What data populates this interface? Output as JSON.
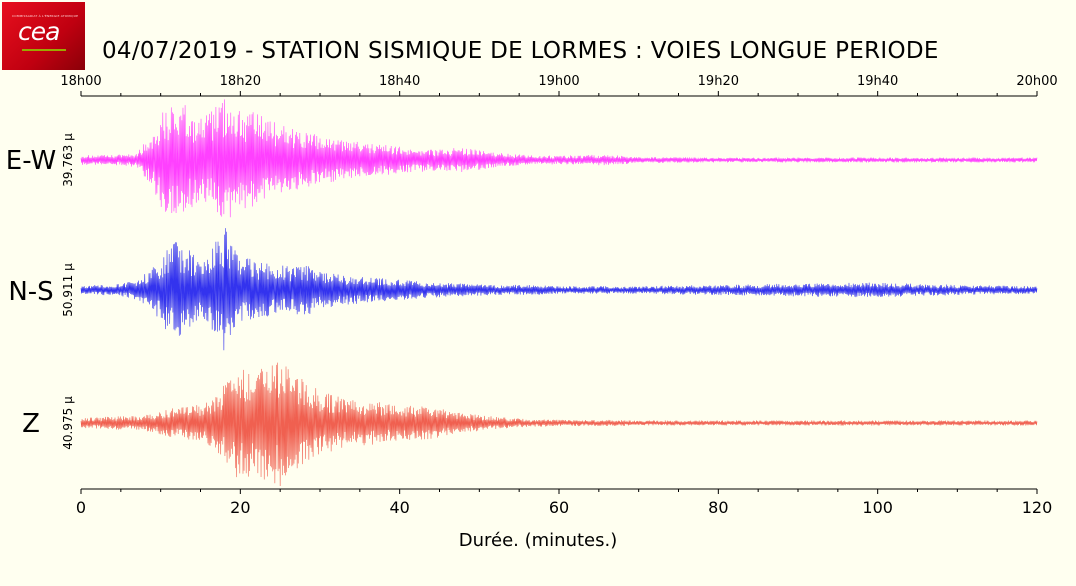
{
  "title": "04/07/2019  -  STATION SISMIQUE DE LORMES : VOIES LONGUE PERIODE",
  "logo": {
    "text": "cea",
    "tagline": "COMMISSARIAT À L'ÉNERGIE ATOMIQUE"
  },
  "colors": {
    "background": "#fffff0",
    "ew": "#ff40ff",
    "ns": "#3333ee",
    "z": "#f06050",
    "logo": "#e30613"
  },
  "chart_data": {
    "type": "line",
    "xlabel": "Durée.  (minutes.)",
    "xlim": [
      0,
      120
    ],
    "x_ticks": [
      0,
      20,
      40,
      60,
      80,
      100,
      120
    ],
    "top_axis_ticks": [
      "18h00",
      "18h20",
      "18h40",
      "19h00",
      "19h20",
      "19h40",
      "20h00"
    ],
    "grid": false,
    "series": [
      {
        "name": "E-W",
        "scale_label": "39.763 µ",
        "color": "#ff40ff",
        "envelope_minutes": [
          0,
          4,
          7,
          9,
          10,
          11,
          12,
          13,
          14,
          15,
          16,
          17,
          18,
          20,
          22,
          24,
          26,
          28,
          30,
          33,
          36,
          40,
          44,
          48,
          52,
          56,
          60,
          66,
          70,
          80,
          90,
          100,
          110,
          120
        ],
        "envelope_amplitude": [
          0.08,
          0.08,
          0.12,
          0.45,
          0.75,
          0.9,
          0.95,
          0.9,
          0.8,
          0.7,
          0.75,
          0.95,
          1.0,
          0.85,
          0.75,
          0.65,
          0.55,
          0.45,
          0.4,
          0.32,
          0.28,
          0.22,
          0.18,
          0.2,
          0.12,
          0.08,
          0.07,
          0.09,
          0.05,
          0.04,
          0.04,
          0.04,
          0.04,
          0.04
        ]
      },
      {
        "name": "N-S",
        "scale_label": "50.911 µ",
        "color": "#3333ee",
        "envelope_minutes": [
          0,
          4,
          7,
          9,
          10,
          11,
          12,
          13,
          14,
          15,
          16,
          17,
          18,
          20,
          22,
          24,
          26,
          28,
          30,
          33,
          36,
          40,
          44,
          48,
          52,
          56,
          60,
          66,
          70,
          80,
          90,
          100,
          110,
          120
        ],
        "envelope_amplitude": [
          0.08,
          0.08,
          0.15,
          0.35,
          0.5,
          0.7,
          0.8,
          0.75,
          0.6,
          0.45,
          0.5,
          0.85,
          1.0,
          0.55,
          0.45,
          0.4,
          0.38,
          0.42,
          0.3,
          0.24,
          0.2,
          0.16,
          0.12,
          0.1,
          0.08,
          0.08,
          0.06,
          0.06,
          0.06,
          0.08,
          0.1,
          0.12,
          0.08,
          0.06
        ]
      },
      {
        "name": "Z",
        "scale_label": "40.975 µ",
        "color": "#f06050",
        "envelope_minutes": [
          0,
          4,
          7,
          9,
          10,
          12,
          14,
          16,
          17,
          18,
          19,
          20,
          22,
          24,
          25,
          26,
          28,
          30,
          33,
          36,
          40,
          44,
          48,
          52,
          56,
          60,
          66,
          70,
          80,
          90,
          100,
          110,
          120
        ],
        "envelope_amplitude": [
          0.08,
          0.1,
          0.12,
          0.14,
          0.18,
          0.25,
          0.28,
          0.35,
          0.45,
          0.6,
          0.8,
          0.9,
          0.85,
          0.95,
          1.0,
          0.85,
          0.7,
          0.5,
          0.4,
          0.35,
          0.28,
          0.25,
          0.15,
          0.1,
          0.06,
          0.05,
          0.05,
          0.04,
          0.04,
          0.04,
          0.04,
          0.04,
          0.04
        ]
      }
    ]
  }
}
